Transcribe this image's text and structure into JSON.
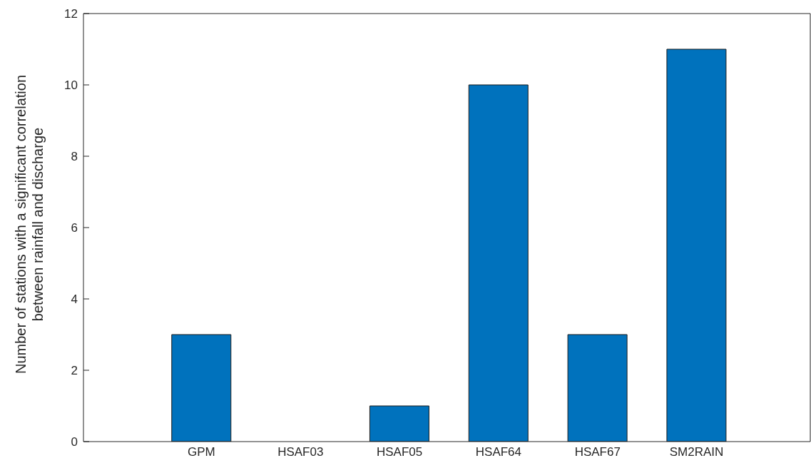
{
  "chart_data": {
    "type": "bar",
    "ylabel": "Number of stations with a significant correlation between rainfall and discharge",
    "categories": [
      "GPM",
      "HSAF03",
      "HSAF05",
      "HSAF64",
      "HSAF67",
      "SM2RAIN"
    ],
    "values": [
      3,
      0,
      1,
      10,
      3,
      11
    ],
    "color": "#0072bd",
    "ylim": [
      0,
      12
    ],
    "yticks": [
      0,
      2,
      4,
      6,
      8,
      10,
      12
    ],
    "grid": false,
    "legend": false
  }
}
